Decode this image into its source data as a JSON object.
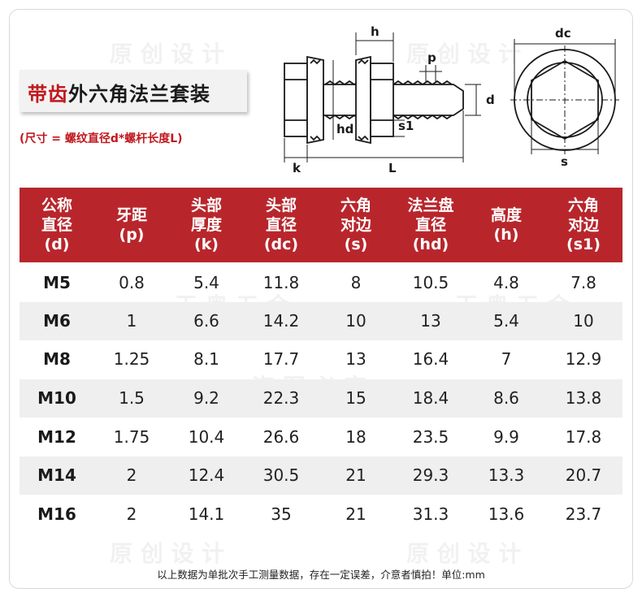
{
  "title": {
    "highlight": "带齿",
    "rest": "外六角法兰套装"
  },
  "subtitle": "(尺寸 = 螺纹直径d*螺杆长度L)",
  "diagram_labels": {
    "h": "h",
    "p": "p",
    "d": "d",
    "hd": "hd",
    "s1": "s1",
    "k": "k",
    "L": "L",
    "dc": "dc",
    "s": "s"
  },
  "table": {
    "headers": [
      [
        "公称",
        "直径",
        "(d)"
      ],
      [
        "牙距",
        "(p)"
      ],
      [
        "头部",
        "厚度",
        "(k)"
      ],
      [
        "头部",
        "直径",
        "(dc)"
      ],
      [
        "六角",
        "对边",
        "(s)"
      ],
      [
        "法兰盘",
        "直径",
        "(hd)"
      ],
      [
        "高度",
        "(h)"
      ],
      [
        "六角",
        "对边",
        "(s1)"
      ]
    ],
    "rows": [
      [
        "M5",
        "0.8",
        "5.4",
        "11.8",
        "8",
        "10.5",
        "4.8",
        "7.8"
      ],
      [
        "M6",
        "1",
        "6.6",
        "14.2",
        "10",
        "13",
        "5.4",
        "10"
      ],
      [
        "M8",
        "1.25",
        "8.1",
        "17.7",
        "13",
        "16.4",
        "7",
        "12.9"
      ],
      [
        "M10",
        "1.5",
        "9.2",
        "22.3",
        "15",
        "18.4",
        "8.6",
        "13.8"
      ],
      [
        "M12",
        "1.75",
        "10.4",
        "26.6",
        "18",
        "23.5",
        "9.9",
        "17.8"
      ],
      [
        "M14",
        "2",
        "12.4",
        "30.5",
        "21",
        "29.3",
        "13.3",
        "20.7"
      ],
      [
        "M16",
        "2",
        "14.1",
        "35",
        "21",
        "31.3",
        "13.6",
        "23.7"
      ]
    ]
  },
  "footer": "以上数据为单批次手工测量数据，存在一定误差，介意者慎拍！单位:mm",
  "colors": {
    "accent": "#b8262c",
    "text": "#222222",
    "alt_row": "#efefef"
  }
}
